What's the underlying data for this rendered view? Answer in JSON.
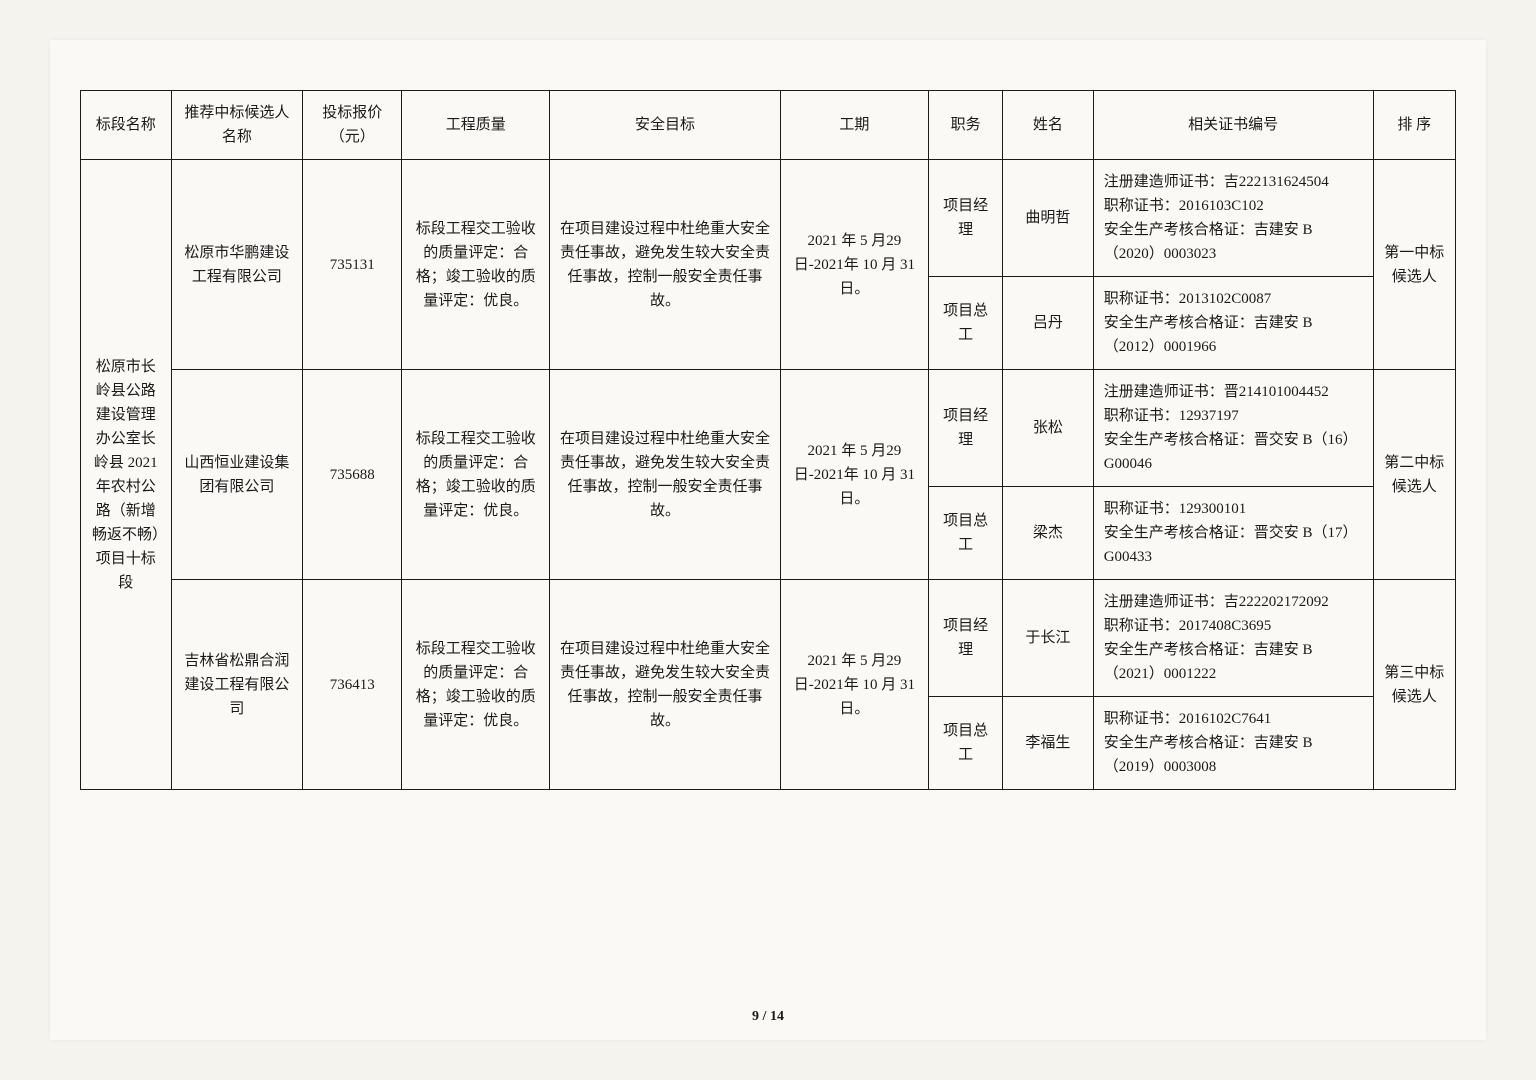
{
  "headers": {
    "section": "标段名称",
    "bidder": "推荐中标候选人名称",
    "price": "投标报价（元）",
    "quality": "工程质量",
    "safety": "安全目标",
    "period": "工期",
    "role": "职务",
    "name": "姓名",
    "cert": "相关证书编号",
    "rank": "排 序"
  },
  "section_name": "松原市长岭县公路建设管理办公室长岭县 2021 年农村公路（新增畅返不畅）项目十标段",
  "bidders": [
    {
      "company": "松原市华鹏建设工程有限公司",
      "price": "735131",
      "quality": "标段工程交工验收的质量评定：合格；竣工验收的质量评定：优良。",
      "safety": "在项目建设过程中杜绝重大安全责任事故，避免发生较大安全责任事故，控制一般安全责任事故。",
      "period": "2021 年 5 月29 日-2021年 10 月 31日。",
      "rank": "第一中标候选人",
      "staff": [
        {
          "role": "项目经理",
          "name": "曲明哲",
          "cert": "注册建造师证书：吉222131624504\n职称证书：2016103C102\n安全生产考核合格证：吉建安 B（2020）0003023"
        },
        {
          "role": "项目总工",
          "name": "吕丹",
          "cert": "职称证书：2013102C0087\n安全生产考核合格证：吉建安 B（2012）0001966"
        }
      ]
    },
    {
      "company": "山西恒业建设集团有限公司",
      "price": "735688",
      "quality": "标段工程交工验收的质量评定：合格；竣工验收的质量评定：优良。",
      "safety": "在项目建设过程中杜绝重大安全责任事故，避免发生较大安全责任事故，控制一般安全责任事故。",
      "period": "2021 年 5 月29 日-2021年 10 月 31日。",
      "rank": "第二中标候选人",
      "staff": [
        {
          "role": "项目经理",
          "name": "张松",
          "cert": "注册建造师证书：晋214101004452\n职称证书：12937197\n安全生产考核合格证：晋交安 B（16）G00046"
        },
        {
          "role": "项目总工",
          "name": "梁杰",
          "cert": "职称证书：129300101\n安全生产考核合格证：晋交安 B（17）G00433"
        }
      ]
    },
    {
      "company": "吉林省松鼎合润建设工程有限公司",
      "price": "736413",
      "quality": "标段工程交工验收的质量评定：合格；竣工验收的质量评定：优良。",
      "safety": "在项目建设过程中杜绝重大安全责任事故，避免发生较大安全责任事故，控制一般安全责任事故。",
      "period": "2021 年 5 月29 日-2021年 10 月 31日。",
      "rank": "第三中标候选人",
      "staff": [
        {
          "role": "项目经理",
          "name": "于长江",
          "cert": "注册建造师证书：吉222202172092\n职称证书：2017408C3695\n安全生产考核合格证：吉建安 B（2021）0001222"
        },
        {
          "role": "项目总工",
          "name": "李福生",
          "cert": "职称证书：2016102C7641\n安全生产考核合格证：吉建安 B（2019）0003008"
        }
      ]
    }
  ],
  "page_number": "9 / 14"
}
